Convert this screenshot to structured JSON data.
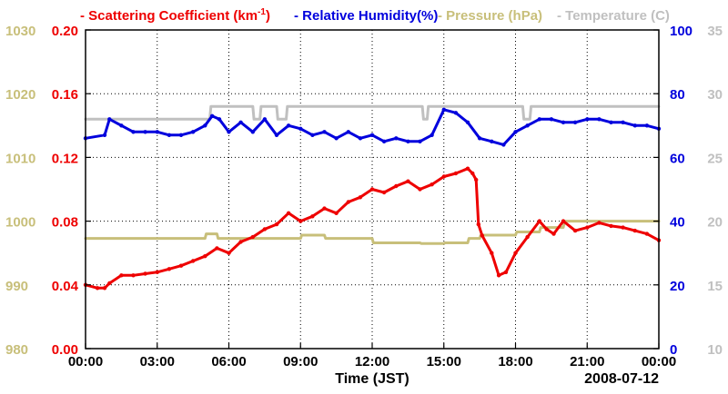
{
  "chart_data": {
    "type": "line",
    "title": "",
    "legend": {
      "placement": "top",
      "items": [
        {
          "key": "scattering",
          "text": "- Scattering Coefficient (km",
          "sup": "-1",
          "close": ")",
          "color": "#ee0000"
        },
        {
          "key": "humidity",
          "text": "- Relative Humidity(%)",
          "color": "#0000dd"
        },
        {
          "key": "pressure",
          "text": "- Pressure (hPa)",
          "color": "#c8bf7a"
        },
        {
          "key": "temperature",
          "text": "- Temperature (C)",
          "color": "#c0c0c0"
        }
      ]
    },
    "xlabel": "Time (JST)",
    "date_label": "2008-07-12",
    "x_ticks": [
      "00:00",
      "03:00",
      "06:00",
      "09:00",
      "12:00",
      "15:00",
      "18:00",
      "21:00",
      "00:00"
    ],
    "x_range_hours": [
      0,
      24
    ],
    "grid": true,
    "axes": {
      "scattering": {
        "side": "left-inner",
        "range": [
          0,
          0.2
        ],
        "ticks": [
          "0.00",
          "0.04",
          "0.08",
          "0.12",
          "0.16",
          "0.20"
        ],
        "color": "#ee0000"
      },
      "pressure": {
        "side": "left-outer",
        "range": [
          980,
          1030
        ],
        "ticks": [
          "980",
          "990",
          "1000",
          "1010",
          "1020",
          "1030"
        ],
        "color": "#c8bf7a"
      },
      "humidity": {
        "side": "right-inner",
        "range": [
          0,
          100
        ],
        "ticks": [
          "0",
          "20",
          "40",
          "60",
          "80",
          "100"
        ],
        "color": "#0000dd"
      },
      "temperature": {
        "side": "right-outer",
        "range": [
          10,
          35
        ],
        "ticks": [
          "10",
          "15",
          "20",
          "25",
          "30",
          "35"
        ],
        "color": "#c0c0c0"
      }
    },
    "series": [
      {
        "name": "Scattering Coefficient",
        "axis": "scattering",
        "color": "#ee0000",
        "x": [
          0,
          0.5,
          0.8,
          1.0,
          1.5,
          2.0,
          2.5,
          3.0,
          3.5,
          4.0,
          4.5,
          5.0,
          5.5,
          6.0,
          6.5,
          7.0,
          7.5,
          8.0,
          8.5,
          9.0,
          9.5,
          10.0,
          10.5,
          11.0,
          11.5,
          12.0,
          12.5,
          13.0,
          13.5,
          14.0,
          14.5,
          15.0,
          15.5,
          16.0,
          16.2,
          16.35,
          16.45,
          16.6,
          17.0,
          17.3,
          17.6,
          18.0,
          18.5,
          19.0,
          19.3,
          19.6,
          20.0,
          20.5,
          21.0,
          21.5,
          22.0,
          22.5,
          23.0,
          23.5,
          24.0
        ],
        "y": [
          0.04,
          0.038,
          0.038,
          0.041,
          0.046,
          0.046,
          0.047,
          0.048,
          0.05,
          0.052,
          0.055,
          0.058,
          0.063,
          0.06,
          0.067,
          0.07,
          0.075,
          0.078,
          0.085,
          0.08,
          0.083,
          0.088,
          0.085,
          0.092,
          0.095,
          0.1,
          0.098,
          0.102,
          0.105,
          0.1,
          0.103,
          0.108,
          0.11,
          0.113,
          0.11,
          0.106,
          0.078,
          0.071,
          0.06,
          0.046,
          0.048,
          0.06,
          0.07,
          0.08,
          0.075,
          0.072,
          0.08,
          0.074,
          0.076,
          0.079,
          0.077,
          0.076,
          0.074,
          0.072,
          0.068
        ]
      },
      {
        "name": "Relative Humidity",
        "axis": "humidity",
        "color": "#0000dd",
        "x": [
          0,
          0.8,
          1.0,
          1.5,
          2.0,
          2.5,
          3.0,
          3.5,
          4.0,
          4.5,
          5.0,
          5.3,
          5.6,
          6.0,
          6.5,
          7.0,
          7.5,
          8.0,
          8.5,
          9.0,
          9.5,
          10.0,
          10.5,
          11.0,
          11.5,
          12.0,
          12.5,
          13.0,
          13.5,
          14.0,
          14.5,
          15.0,
          15.5,
          16.0,
          16.5,
          17.0,
          17.5,
          18.0,
          18.5,
          19.0,
          19.5,
          20.0,
          20.5,
          21.0,
          21.5,
          22.0,
          22.5,
          23.0,
          23.5,
          24.0
        ],
        "y": [
          66,
          67,
          72,
          70,
          68,
          68,
          68,
          67,
          67,
          68,
          70,
          73,
          72,
          68,
          71,
          68,
          72,
          67,
          70,
          69,
          67,
          68,
          66,
          68,
          66,
          67,
          65,
          66,
          65,
          65,
          67,
          75,
          74,
          71,
          66,
          65,
          64,
          68,
          70,
          72,
          72,
          71,
          71,
          72,
          72,
          71,
          71,
          70,
          70,
          69
        ]
      },
      {
        "name": "Pressure",
        "axis": "pressure",
        "color": "#c8bf7a",
        "x": [
          0,
          5.0,
          5.05,
          5.5,
          5.55,
          9.0,
          9.05,
          10.0,
          10.05,
          12.0,
          12.05,
          14.0,
          14.05,
          15.0,
          15.05,
          16.0,
          16.05,
          16.5,
          16.55,
          18.0,
          18.05,
          19.0,
          19.05,
          20.0,
          20.05,
          24.0
        ],
        "y": [
          997.3,
          997.3,
          998.0,
          998.0,
          997.3,
          997.3,
          997.8,
          997.8,
          997.3,
          997.3,
          996.6,
          996.6,
          996.5,
          996.5,
          996.6,
          996.6,
          997.3,
          997.3,
          997.8,
          997.8,
          998.3,
          998.3,
          999.0,
          999.0,
          1000.0,
          1000.0
        ]
      },
      {
        "name": "Temperature",
        "axis": "temperature",
        "color": "#c0c0c0",
        "x": [
          0,
          5.2,
          5.25,
          7.0,
          7.05,
          7.3,
          7.35,
          8.0,
          8.05,
          8.4,
          8.45,
          14.1,
          14.15,
          14.3,
          14.35,
          18.3,
          18.35,
          18.6,
          18.65,
          24.0
        ],
        "y": [
          28.0,
          28.0,
          29.0,
          29.0,
          28.0,
          28.0,
          29.0,
          29.0,
          28.0,
          28.0,
          29.0,
          29.0,
          28.0,
          28.0,
          29.0,
          29.0,
          28.0,
          28.0,
          29.0,
          29.0
        ]
      }
    ]
  }
}
